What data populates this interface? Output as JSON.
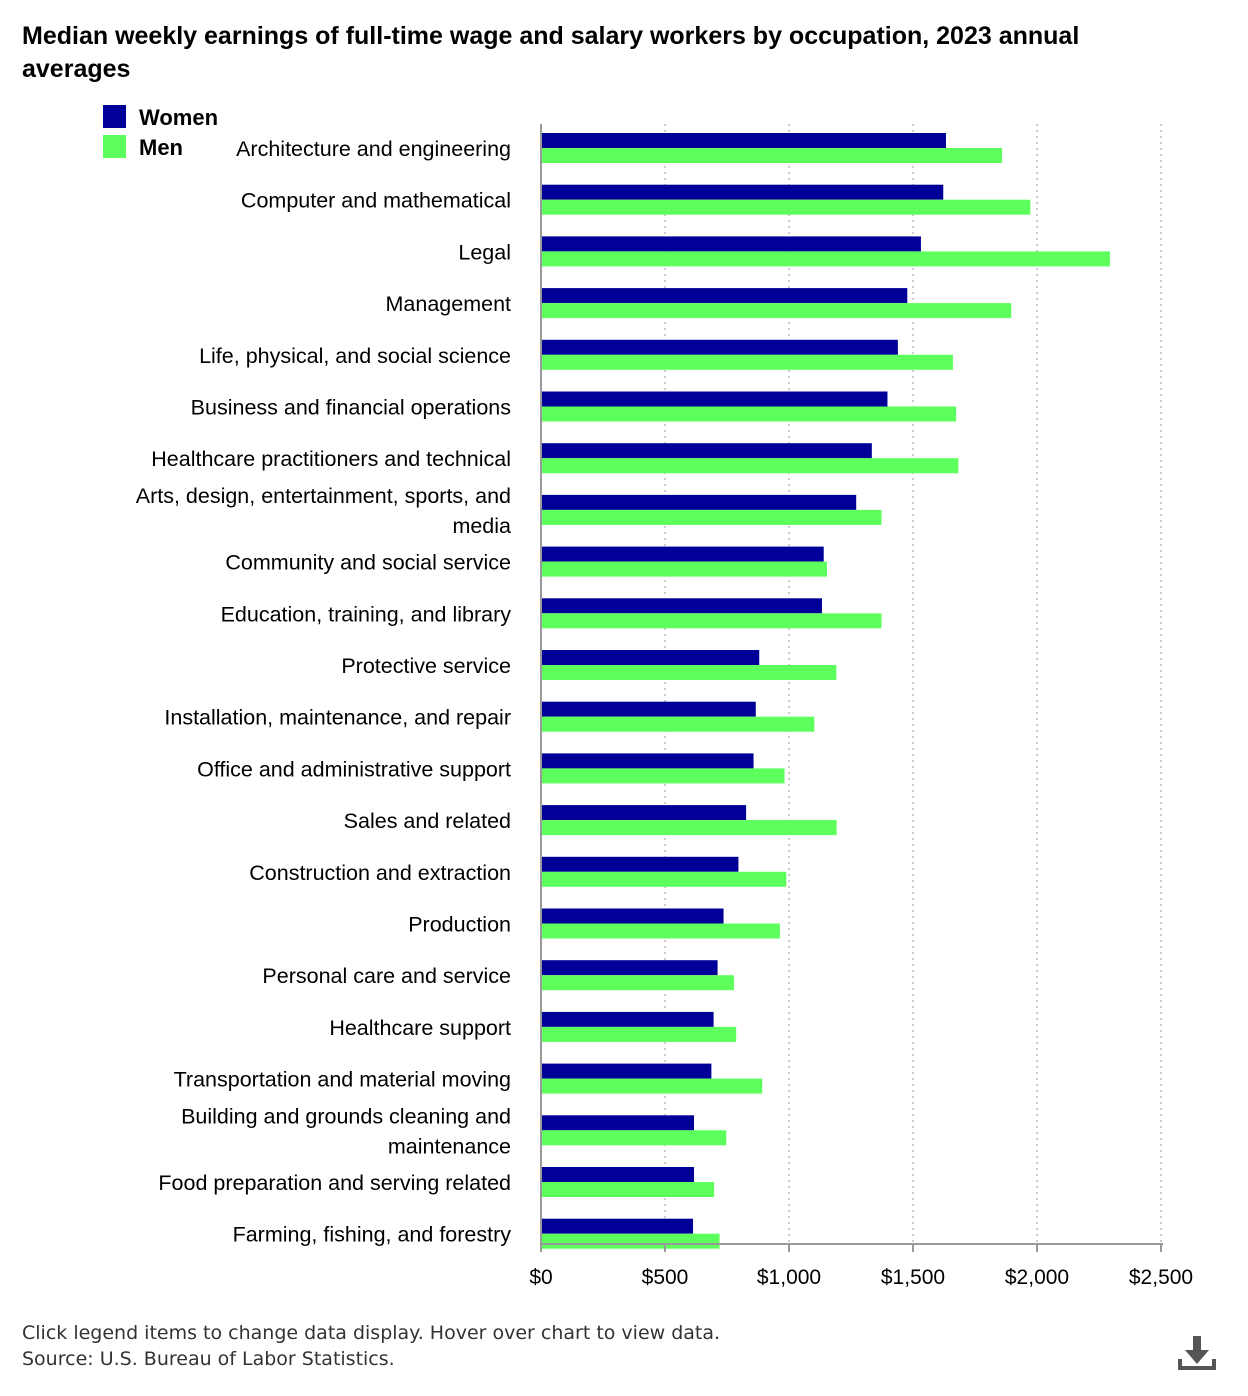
{
  "title": "Median weekly earnings of full-time wage and salary workers by occupation, 2023 annual averages",
  "footer": {
    "hint": "Click legend items to change data display. Hover over chart to view data.",
    "source": "Source: U.S. Bureau of Labor Statistics."
  },
  "download_icon": "download-icon",
  "colors": {
    "women": "#000099",
    "men": "#5cff5c",
    "axis": "#999999",
    "grid": "#bbbbbb"
  },
  "chart_data": {
    "type": "bar",
    "orientation": "horizontal",
    "title": "Median weekly earnings of full-time wage and salary workers by occupation, 2023 annual averages",
    "xlabel": "",
    "ylabel": "",
    "xlim": [
      0,
      2500
    ],
    "x_ticks": [
      0,
      500,
      1000,
      1500,
      2000,
      2500
    ],
    "x_tick_labels": [
      "$0",
      "$500",
      "$1,000",
      "$1,500",
      "$2,000",
      "$2,500"
    ],
    "grid": "vertical dotted",
    "legend_position": "top-left",
    "categories": [
      [
        "Architecture and engineering"
      ],
      [
        "Computer and mathematical"
      ],
      [
        "Legal"
      ],
      [
        "Management"
      ],
      [
        "Life, physical, and social science"
      ],
      [
        "Business and financial operations"
      ],
      [
        "Healthcare practitioners and technical"
      ],
      [
        "Arts, design, entertainment, sports, and",
        "media"
      ],
      [
        "Community and social service"
      ],
      [
        "Education, training, and library"
      ],
      [
        "Protective service"
      ],
      [
        "Installation, maintenance, and repair"
      ],
      [
        "Office and administrative support"
      ],
      [
        "Sales and related"
      ],
      [
        "Construction and extraction"
      ],
      [
        "Production"
      ],
      [
        "Personal care and service"
      ],
      [
        "Healthcare support"
      ],
      [
        "Transportation and material moving"
      ],
      [
        "Building and grounds cleaning and",
        "maintenance"
      ],
      [
        "Food preparation and serving related"
      ],
      [
        "Farming, fishing, and forestry"
      ]
    ],
    "series": [
      {
        "name": "Women",
        "color": "#000099",
        "values": [
          1633,
          1622,
          1532,
          1477,
          1439,
          1397,
          1334,
          1271,
          1140,
          1133,
          880,
          866,
          857,
          827,
          796,
          736,
          712,
          696,
          687,
          617,
          617,
          613
        ]
      },
      {
        "name": "Men",
        "color": "#5cff5c",
        "values": [
          1859,
          1973,
          2294,
          1896,
          1661,
          1674,
          1683,
          1373,
          1153,
          1373,
          1191,
          1102,
          982,
          1192,
          989,
          963,
          778,
          787,
          892,
          747,
          698,
          720
        ]
      }
    ]
  }
}
